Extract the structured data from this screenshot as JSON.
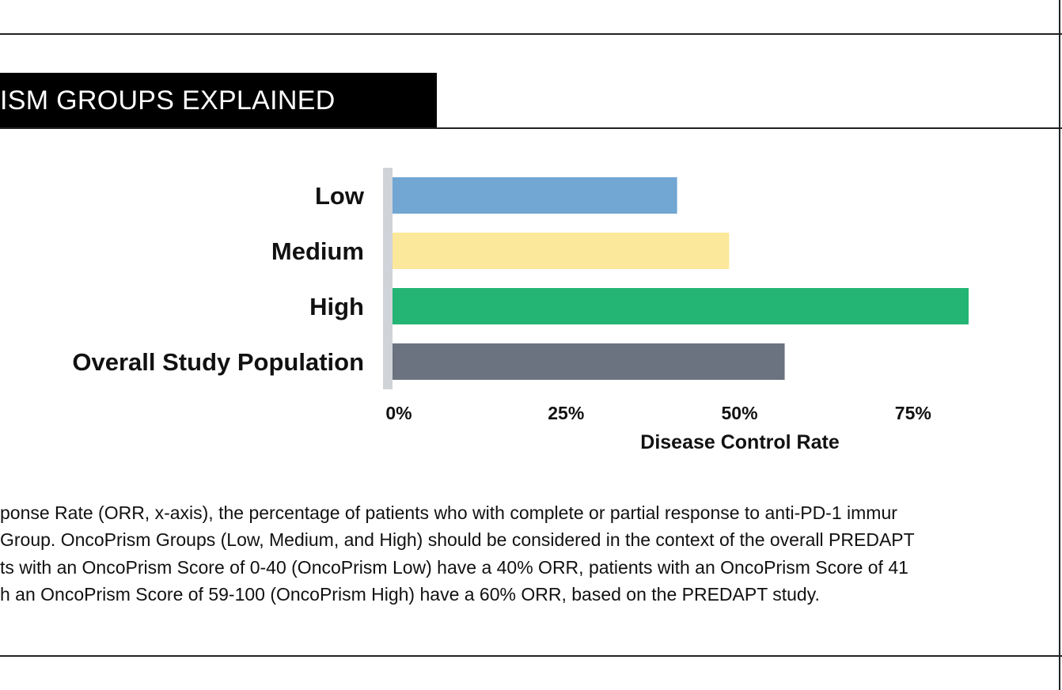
{
  "header": {
    "title": "ISM GROUPS EXPLAINED"
  },
  "chart_data": {
    "type": "bar",
    "orientation": "horizontal",
    "categories": [
      "Low",
      "Medium",
      "High",
      "Overall Study Population"
    ],
    "values": [
      41,
      48.5,
      83,
      56.5
    ],
    "colors": [
      "#72a6d3",
      "#fce89a",
      "#24b574",
      "#6b7380"
    ],
    "xlabel": "Disease Control Rate",
    "xticks": [
      "0%",
      "25%",
      "50%",
      "75%"
    ],
    "xtick_values": [
      0,
      25,
      50,
      75
    ],
    "xlim": [
      0,
      85
    ],
    "grid": false,
    "axis_color": "#d0d3d8"
  },
  "caption": {
    "lines": [
      "ponse Rate (ORR, x-axis), the percentage of patients who with complete or partial response to anti-PD-1 immur",
      "Group. OncoPrism Groups (Low, Medium, and High) should be considered in the context of the overall PREDAPT",
      "ts with an OncoPrism Score of 0-40 (OncoPrism Low) have a 40% ORR, patients with an OncoPrism Score of 41",
      "h an OncoPrism Score of 59-100 (OncoPrism High) have a 60% ORR, based on the PREDAPT study."
    ]
  }
}
